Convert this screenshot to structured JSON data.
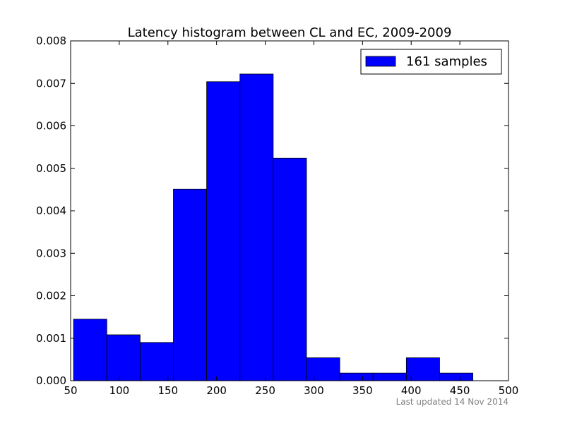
{
  "chart_data": {
    "type": "bar",
    "subtype": "histogram",
    "title": "Latency histogram between CL and EC, 2009-2009",
    "xlabel": "",
    "ylabel": "",
    "xlim": [
      50,
      500
    ],
    "ylim": [
      0,
      0.008
    ],
    "xticks": [
      "50",
      "100",
      "150",
      "200",
      "250",
      "300",
      "350",
      "400",
      "450",
      "500"
    ],
    "yticks": [
      "0.000",
      "0.001",
      "0.002",
      "0.003",
      "0.004",
      "0.005",
      "0.006",
      "0.007",
      "0.008"
    ],
    "bins": [
      {
        "start": 53.0,
        "end": 87.2,
        "value": 0.00145
      },
      {
        "start": 87.2,
        "end": 121.4,
        "value": 0.00108
      },
      {
        "start": 121.4,
        "end": 155.6,
        "value": 0.0009
      },
      {
        "start": 155.6,
        "end": 189.8,
        "value": 0.00451
      },
      {
        "start": 189.8,
        "end": 224.0,
        "value": 0.00704
      },
      {
        "start": 224.0,
        "end": 258.2,
        "value": 0.00722
      },
      {
        "start": 258.2,
        "end": 292.4,
        "value": 0.00524
      },
      {
        "start": 292.4,
        "end": 326.6,
        "value": 0.00054
      },
      {
        "start": 326.6,
        "end": 360.8,
        "value": 0.00018
      },
      {
        "start": 360.8,
        "end": 395.0,
        "value": 0.00018
      },
      {
        "start": 395.0,
        "end": 429.2,
        "value": 0.00054
      },
      {
        "start": 429.2,
        "end": 463.4,
        "value": 0.00018
      }
    ],
    "series": [
      {
        "name": "161 samples",
        "color": "#0000ff"
      }
    ],
    "legend_position": "top-right",
    "grid": false
  },
  "footer": {
    "text": "Last updated 14 Nov 2014"
  }
}
